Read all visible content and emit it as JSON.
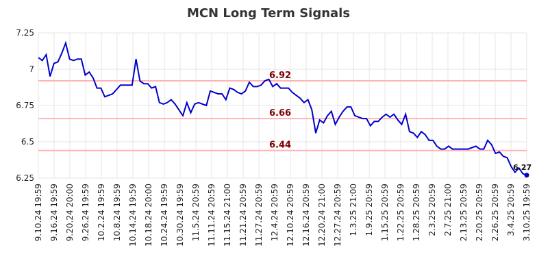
{
  "chart_data": {
    "type": "line",
    "title": "MCN Long Term Signals",
    "xlabel": "",
    "ylabel": "",
    "ylim": [
      6.25,
      7.25
    ],
    "grid": true,
    "y_ticks": [
      "7.25",
      "7",
      "6.75",
      "6.5",
      "6.25"
    ],
    "y_tick_values": [
      7.25,
      7.0,
      6.75,
      6.5,
      6.25
    ],
    "x_ticks": [
      "9.10.24 19:59",
      "9.16.24 19:59",
      "9.20.24 20:00",
      "9.26.24 19:59",
      "10.2.24 19:59",
      "10.8.24 19:59",
      "10.14.24 19:59",
      "10.18.24 20:00",
      "10.24.24 19:59",
      "10.30.24 19:59",
      "11.5.24 20:59",
      "11.11.24 20:59",
      "11.15.24 21:00",
      "11.21.24 20:59",
      "11.27.24 20:59",
      "12.4.24 20:59",
      "12.10.24 20:59",
      "12.16.24 20:59",
      "12.20.24 21:00",
      "12.27.24 20:59",
      "1.3.25 21:00",
      "1.9.25 20:59",
      "1.15.25 20:59",
      "1.22.25 20:59",
      "1.28.25 20:59",
      "2.3.25 20:59",
      "2.7.25 21:00",
      "2.13.25 20:59",
      "2.20.25 20:59",
      "2.26.25 20:59",
      "3.4.25 20:59",
      "3.10.25 19:59"
    ],
    "levels": [
      {
        "value": 6.92,
        "label": "6.92",
        "color": "#ffb3b3"
      },
      {
        "value": 6.66,
        "label": "6.66",
        "color": "#ffb3b3"
      },
      {
        "value": 6.44,
        "label": "6.44",
        "color": "#ffb3b3"
      }
    ],
    "series": [
      {
        "color": "#0000cc",
        "values": [
          7.08,
          7.06,
          7.1,
          6.95,
          7.04,
          7.05,
          7.11,
          7.18,
          7.07,
          7.06,
          7.07,
          7.07,
          6.96,
          6.98,
          6.94,
          6.87,
          6.87,
          6.81,
          6.82,
          6.83,
          6.86,
          6.89,
          6.89,
          6.89,
          6.89,
          7.07,
          6.92,
          6.9,
          6.9,
          6.87,
          6.88,
          6.77,
          6.76,
          6.77,
          6.79,
          6.76,
          6.72,
          6.68,
          6.77,
          6.7,
          6.76,
          6.77,
          6.76,
          6.75,
          6.85,
          6.84,
          6.83,
          6.83,
          6.79,
          6.87,
          6.86,
          6.84,
          6.83,
          6.85,
          6.91,
          6.88,
          6.88,
          6.89,
          6.92,
          6.93,
          6.88,
          6.9,
          6.87,
          6.87,
          6.87,
          6.84,
          6.82,
          6.8,
          6.77,
          6.79,
          6.72,
          6.56,
          6.65,
          6.63,
          6.68,
          6.71,
          6.62,
          6.67,
          6.71,
          6.74,
          6.74,
          6.68,
          6.67,
          6.66,
          6.66,
          6.61,
          6.64,
          6.64,
          6.67,
          6.69,
          6.67,
          6.69,
          6.65,
          6.62,
          6.69,
          6.57,
          6.56,
          6.53,
          6.57,
          6.55,
          6.51,
          6.51,
          6.47,
          6.45,
          6.45,
          6.47,
          6.45,
          6.45,
          6.45,
          6.45,
          6.45,
          6.46,
          6.47,
          6.45,
          6.45,
          6.51,
          6.48,
          6.42,
          6.43,
          6.4,
          6.39,
          6.33,
          6.29,
          6.32,
          6.28,
          6.27
        ]
      }
    ],
    "last_value_label": "6.27"
  }
}
